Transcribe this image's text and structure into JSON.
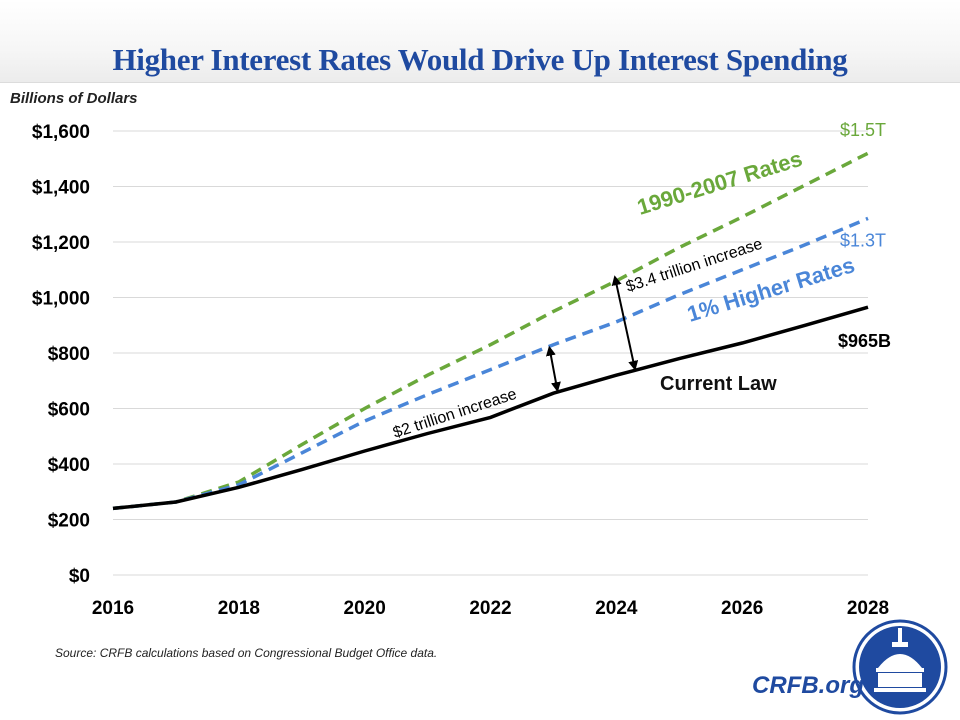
{
  "chart_data": {
    "type": "line",
    "title": "Higher Interest Rates Would Drive Up Interest Spending",
    "ylabel": "Billions of Dollars",
    "xlabel": "",
    "x": [
      2016,
      2017,
      2018,
      2019,
      2020,
      2021,
      2022,
      2023,
      2024,
      2025,
      2026,
      2027,
      2028
    ],
    "xticks": [
      "2016",
      "2018",
      "2020",
      "2022",
      "2024",
      "2026",
      "2028"
    ],
    "xlim": [
      2016,
      2028
    ],
    "yticks": [
      "$0",
      "$200",
      "$400",
      "$600",
      "$800",
      "$1,000",
      "$1,200",
      "$1,400",
      "$1,600"
    ],
    "ylim": [
      0,
      1600
    ],
    "grid": true,
    "legend": "none (inline labels)",
    "series": [
      {
        "name": "Current Law",
        "color": "#000000",
        "style": "solid",
        "values": [
          240,
          263,
          316,
          380,
          447,
          510,
          568,
          655,
          720,
          780,
          836,
          900,
          965
        ],
        "end_label": "$965B"
      },
      {
        "name": "1% Higher Rates",
        "color": "#4a86d8",
        "style": "dashed",
        "values": [
          240,
          263,
          325,
          440,
          555,
          650,
          740,
          830,
          912,
          1010,
          1100,
          1190,
          1285
        ],
        "end_label": "$1.3T"
      },
      {
        "name": "1990-2007 Rates",
        "color": "#6aa83b",
        "style": "dashed",
        "values": [
          240,
          263,
          335,
          470,
          600,
          720,
          830,
          950,
          1060,
          1180,
          1290,
          1405,
          1520
        ],
        "end_label": "$1.5T"
      }
    ],
    "annotations": [
      {
        "text": "$2 trillion increase",
        "from_series": "Current Law",
        "to_series": "1% Higher Rates",
        "x": 2023
      },
      {
        "text": "$3.4 trillion increase",
        "from_series": "Current Law",
        "to_series": "1990-2007 Rates",
        "x": 2024.2
      }
    ]
  },
  "footer": {
    "source": "Source: CRFB calculations based on Congressional Budget Office data.",
    "site": "CRFB.org"
  },
  "logo": {
    "icon": "capitol-dome-icon",
    "bg": "#1f4aa0"
  }
}
